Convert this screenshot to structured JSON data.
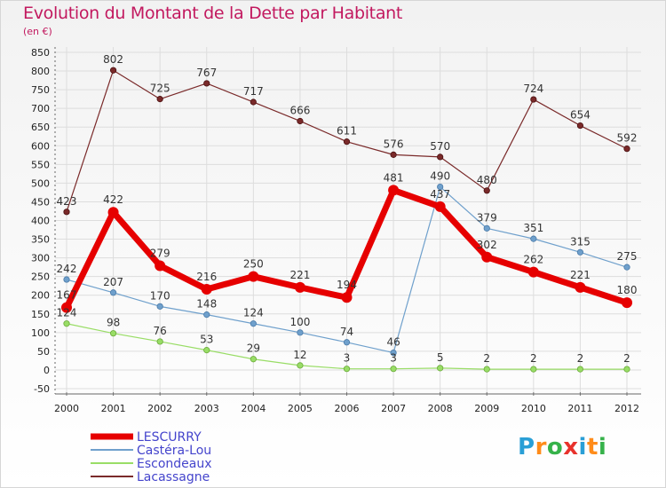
{
  "chart_data": {
    "type": "line",
    "title": "Evolution du Montant de la Dette par Habitant",
    "subtitle": "(en €)",
    "x": [
      "2000",
      "2001",
      "2002",
      "2003",
      "2004",
      "2005",
      "2006",
      "2007",
      "2008",
      "2009",
      "2010",
      "2011",
      "2012"
    ],
    "ylim": [
      -50,
      850
    ],
    "yticks": [
      -50,
      0,
      50,
      100,
      150,
      200,
      250,
      300,
      350,
      400,
      450,
      500,
      550,
      600,
      650,
      700,
      750,
      800,
      850
    ],
    "grid": true,
    "legend_position": "bottom-left",
    "series": [
      {
        "name": "LESCURRY",
        "color": "#e60000",
        "values": [
          167,
          422,
          279,
          216,
          250,
          221,
          194,
          481,
          437,
          302,
          262,
          221,
          180
        ],
        "labels": [
          "167",
          "422",
          "279",
          "216",
          "250",
          "221",
          "194",
          "481",
          "437",
          "302",
          "262",
          "221",
          "180"
        ]
      },
      {
        "name": "Castéra-Lou",
        "color": "#6fa0cc",
        "values": [
          242,
          207,
          170,
          148,
          124,
          100,
          74,
          46,
          490,
          379,
          351,
          315,
          275
        ],
        "labels": [
          "242",
          "207",
          "170",
          "148",
          "124",
          "100",
          "74",
          "46",
          "490",
          "379",
          "351",
          "315",
          "275"
        ]
      },
      {
        "name": "Escondeaux",
        "color": "#99dd66",
        "values": [
          124,
          98,
          76,
          53,
          29,
          12,
          3,
          3,
          5,
          2,
          2,
          2,
          2
        ],
        "labels": [
          "124",
          "98",
          "76",
          "53",
          "29",
          "12",
          "3",
          "3",
          "5",
          "2",
          "2",
          "2",
          "2"
        ]
      },
      {
        "name": "Lacassagne",
        "color": "#7a2a2a",
        "values": [
          423,
          802,
          725,
          767,
          717,
          666,
          611,
          576,
          570,
          480,
          724,
          654,
          592
        ],
        "labels": [
          "423",
          "802",
          "725",
          "767",
          "717",
          "666",
          "611",
          "576",
          "570",
          "480",
          "724",
          "654",
          "592"
        ]
      }
    ]
  },
  "brand": {
    "letters": [
      "P",
      "r",
      "o",
      "x",
      "i",
      "t",
      "i"
    ],
    "colors": [
      "#2a9fd6",
      "#ff8c1a",
      "#36b24a",
      "#e8322c",
      "#2a9fd6",
      "#ff8c1a",
      "#36b24a"
    ]
  }
}
